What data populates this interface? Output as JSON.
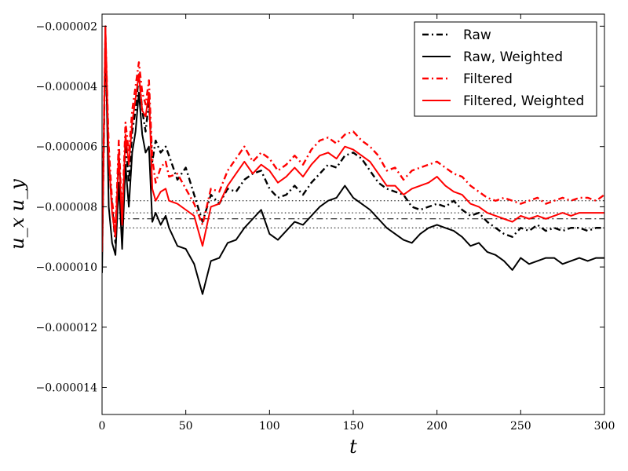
{
  "chart_data": {
    "type": "line",
    "xlabel": "t",
    "ylabel": "u_x u_y",
    "xlim": [
      0,
      300
    ],
    "ylim": [
      -1.49e-05,
      -1.6e-06
    ],
    "x_ticks": [
      0,
      50,
      100,
      150,
      200,
      250,
      300
    ],
    "x_tick_labels": [
      "0",
      "50",
      "100",
      "150",
      "200",
      "250",
      "300"
    ],
    "y_ticks": [
      -2e-06,
      -4e-06,
      -6e-06,
      -8e-06,
      -1e-05,
      -1.2e-05,
      -1.4e-05
    ],
    "y_tick_labels": [
      "−0.000002",
      "−0.000004",
      "−0.000006",
      "−0.000008",
      "−0.000010",
      "−0.000012",
      "−0.000014"
    ],
    "grid": false,
    "legend_position": "top-right",
    "series": [
      {
        "name": "Raw",
        "color": "#000000",
        "style": "dashdot",
        "x": [
          0,
          2,
          4,
          6,
          8,
          10,
          12,
          14,
          16,
          18,
          20,
          22,
          24,
          26,
          28,
          30,
          32,
          35,
          38,
          40,
          45,
          50,
          55,
          60,
          65,
          70,
          75,
          80,
          85,
          90,
          95,
          100,
          105,
          110,
          115,
          120,
          125,
          130,
          135,
          140,
          145,
          150,
          155,
          160,
          165,
          170,
          175,
          180,
          185,
          190,
          195,
          200,
          205,
          210,
          215,
          220,
          225,
          230,
          235,
          240,
          245,
          250,
          255,
          260,
          265,
          270,
          275,
          280,
          285,
          290,
          295,
          300
        ],
        "y": [
          -9.5e-06,
          -2.5e-06,
          -6.5e-06,
          -8e-06,
          -9.2e-06,
          -6.2e-06,
          -8.8e-06,
          -5.8e-06,
          -7.2e-06,
          -5.5e-06,
          -4.8e-06,
          -3.6e-06,
          -4.8e-06,
          -5.5e-06,
          -4.5e-06,
          -6.5e-06,
          -5.8e-06,
          -6.2e-06,
          -6e-06,
          -6.3e-06,
          -7.1e-06,
          -6.7e-06,
          -7.6e-06,
          -8.5e-06,
          -7.6e-06,
          -7.9e-06,
          -7.4e-06,
          -7.5e-06,
          -7.1e-06,
          -6.9e-06,
          -6.8e-06,
          -7.4e-06,
          -7.7e-06,
          -7.6e-06,
          -7.3e-06,
          -7.6e-06,
          -7.2e-06,
          -6.9e-06,
          -6.6e-06,
          -6.7e-06,
          -6.3e-06,
          -6.2e-06,
          -6.4e-06,
          -6.8e-06,
          -7.2e-06,
          -7.4e-06,
          -7.5e-06,
          -7.6e-06,
          -8e-06,
          -8.1e-06,
          -8e-06,
          -7.9e-06,
          -8e-06,
          -7.8e-06,
          -8.1e-06,
          -8.3e-06,
          -8.2e-06,
          -8.5e-06,
          -8.7e-06,
          -8.9e-06,
          -9e-06,
          -8.7e-06,
          -8.8e-06,
          -8.6e-06,
          -8.8e-06,
          -8.7e-06,
          -8.8e-06,
          -8.7e-06,
          -8.7e-06,
          -8.8e-06,
          -8.7e-06,
          -8.7e-06
        ]
      },
      {
        "name": "Raw, Weighted",
        "color": "#000000",
        "style": "solid",
        "x": [
          0,
          2,
          4,
          6,
          8,
          10,
          12,
          14,
          16,
          18,
          20,
          22,
          24,
          26,
          28,
          30,
          32,
          35,
          38,
          40,
          45,
          50,
          55,
          60,
          65,
          70,
          75,
          80,
          85,
          90,
          95,
          100,
          105,
          110,
          115,
          120,
          125,
          130,
          135,
          140,
          145,
          150,
          155,
          160,
          165,
          170,
          175,
          180,
          185,
          190,
          195,
          200,
          205,
          210,
          215,
          220,
          225,
          230,
          235,
          240,
          245,
          250,
          255,
          260,
          265,
          270,
          275,
          280,
          285,
          290,
          295,
          300
        ],
        "y": [
          -1.02e-05,
          -2e-06,
          -8e-06,
          -9.2e-06,
          -9.6e-06,
          -7.2e-06,
          -9.4e-06,
          -6.6e-06,
          -8e-06,
          -6.2e-06,
          -5.5e-06,
          -4.2e-06,
          -5.6e-06,
          -6.2e-06,
          -6e-06,
          -8.5e-06,
          -8.2e-06,
          -8.6e-06,
          -8.3e-06,
          -8.7e-06,
          -9.3e-06,
          -9.4e-06,
          -9.9e-06,
          -1.09e-05,
          -9.8e-06,
          -9.7e-06,
          -9.2e-06,
          -9.1e-06,
          -8.7e-06,
          -8.4e-06,
          -8.1e-06,
          -8.9e-06,
          -9.1e-06,
          -8.8e-06,
          -8.5e-06,
          -8.6e-06,
          -8.3e-06,
          -8e-06,
          -7.8e-06,
          -7.7e-06,
          -7.3e-06,
          -7.7e-06,
          -7.9e-06,
          -8.1e-06,
          -8.4e-06,
          -8.7e-06,
          -8.9e-06,
          -9.1e-06,
          -9.2e-06,
          -8.9e-06,
          -8.7e-06,
          -8.6e-06,
          -8.7e-06,
          -8.8e-06,
          -9e-06,
          -9.3e-06,
          -9.2e-06,
          -9.5e-06,
          -9.6e-06,
          -9.8e-06,
          -1.01e-05,
          -9.7e-06,
          -9.9e-06,
          -9.8e-06,
          -9.7e-06,
          -9.7e-06,
          -9.9e-06,
          -9.8e-06,
          -9.7e-06,
          -9.8e-06,
          -9.7e-06,
          -9.7e-06
        ]
      },
      {
        "name": "Filtered",
        "color": "#ff0000",
        "style": "dashdot",
        "x": [
          0,
          2,
          4,
          6,
          8,
          10,
          12,
          14,
          16,
          18,
          20,
          22,
          24,
          26,
          28,
          30,
          32,
          35,
          38,
          40,
          45,
          50,
          55,
          60,
          65,
          70,
          75,
          80,
          85,
          90,
          95,
          100,
          105,
          110,
          115,
          120,
          125,
          130,
          135,
          140,
          145,
          150,
          155,
          160,
          165,
          170,
          175,
          180,
          185,
          190,
          195,
          200,
          205,
          210,
          215,
          220,
          225,
          230,
          235,
          240,
          245,
          250,
          255,
          260,
          265,
          270,
          275,
          280,
          285,
          290,
          295,
          300
        ],
        "y": [
          -9.2e-06,
          -2.2e-06,
          -6e-06,
          -7.8e-06,
          -8.8e-06,
          -5.8e-06,
          -8.4e-06,
          -5.2e-06,
          -6.2e-06,
          -4.8e-06,
          -4e-06,
          -3.2e-06,
          -4.2e-06,
          -4.6e-06,
          -3.8e-06,
          -6.4e-06,
          -7.2e-06,
          -6.7e-06,
          -6.5e-06,
          -7e-06,
          -6.9e-06,
          -7.4e-06,
          -7.9e-06,
          -8.6e-06,
          -7.4e-06,
          -7.5e-06,
          -6.8e-06,
          -6.4e-06,
          -6e-06,
          -6.5e-06,
          -6.2e-06,
          -6.4e-06,
          -6.8e-06,
          -6.6e-06,
          -6.3e-06,
          -6.6e-06,
          -6.1e-06,
          -5.8e-06,
          -5.7e-06,
          -5.9e-06,
          -5.6e-06,
          -5.5e-06,
          -5.8e-06,
          -6e-06,
          -6.3e-06,
          -6.8e-06,
          -6.7e-06,
          -7.1e-06,
          -6.8e-06,
          -6.7e-06,
          -6.6e-06,
          -6.5e-06,
          -6.7e-06,
          -6.9e-06,
          -7e-06,
          -7.3e-06,
          -7.5e-06,
          -7.7e-06,
          -7.8e-06,
          -7.7e-06,
          -7.8e-06,
          -7.9e-06,
          -7.8e-06,
          -7.7e-06,
          -7.9e-06,
          -7.8e-06,
          -7.7e-06,
          -7.8e-06,
          -7.7e-06,
          -7.7e-06,
          -7.8e-06,
          -7.6e-06
        ]
      },
      {
        "name": "Filtered, Weighted",
        "color": "#ff0000",
        "style": "solid",
        "x": [
          0,
          2,
          4,
          6,
          8,
          10,
          12,
          14,
          16,
          18,
          20,
          22,
          24,
          26,
          28,
          30,
          32,
          35,
          38,
          40,
          45,
          50,
          55,
          60,
          65,
          70,
          75,
          80,
          85,
          90,
          95,
          100,
          105,
          110,
          115,
          120,
          125,
          130,
          135,
          140,
          145,
          150,
          155,
          160,
          165,
          170,
          175,
          180,
          185,
          190,
          195,
          200,
          205,
          210,
          215,
          220,
          225,
          230,
          235,
          240,
          245,
          250,
          255,
          260,
          265,
          270,
          275,
          280,
          285,
          290,
          295,
          300
        ],
        "y": [
          -9.5e-06,
          -2e-06,
          -6.4e-06,
          -8.2e-06,
          -9e-06,
          -6.2e-06,
          -8.6e-06,
          -5.6e-06,
          -6.6e-06,
          -5.2e-06,
          -4.4e-06,
          -3.6e-06,
          -4.8e-06,
          -5e-06,
          -4.2e-06,
          -7.4e-06,
          -7.8e-06,
          -7.5e-06,
          -7.4e-06,
          -7.8e-06,
          -7.9e-06,
          -8.1e-06,
          -8.3e-06,
          -9.3e-06,
          -8e-06,
          -7.9e-06,
          -7.3e-06,
          -6.9e-06,
          -6.5e-06,
          -6.9e-06,
          -6.6e-06,
          -6.8e-06,
          -7.2e-06,
          -7e-06,
          -6.7e-06,
          -7e-06,
          -6.6e-06,
          -6.3e-06,
          -6.2e-06,
          -6.4e-06,
          -6e-06,
          -6.1e-06,
          -6.3e-06,
          -6.5e-06,
          -6.9e-06,
          -7.3e-06,
          -7.3e-06,
          -7.6e-06,
          -7.4e-06,
          -7.3e-06,
          -7.2e-06,
          -7e-06,
          -7.3e-06,
          -7.5e-06,
          -7.6e-06,
          -7.9e-06,
          -8e-06,
          -8.2e-06,
          -8.3e-06,
          -8.4e-06,
          -8.5e-06,
          -8.3e-06,
          -8.4e-06,
          -8.3e-06,
          -8.4e-06,
          -8.3e-06,
          -8.2e-06,
          -8.3e-06,
          -8.2e-06,
          -8.2e-06,
          -8.2e-06,
          -8.2e-06
        ]
      }
    ],
    "reference_lines": [
      {
        "y": -7.8e-06,
        "color": "#000000",
        "style": "dotted",
        "x_start": 10
      },
      {
        "y": -8.2e-06,
        "color": "#000000",
        "style": "dotted",
        "x_start": 10
      },
      {
        "y": -8.4e-06,
        "color": "#000000",
        "style": "dashdot",
        "x_start": 10
      },
      {
        "y": -8.7e-06,
        "color": "#000000",
        "style": "dotted",
        "x_start": 10
      }
    ]
  }
}
